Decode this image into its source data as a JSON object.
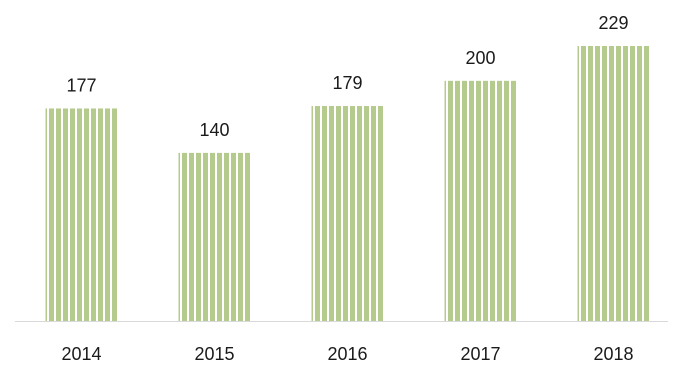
{
  "chart_data": {
    "type": "bar",
    "categories": [
      "2014",
      "2015",
      "2016",
      "2017",
      "2018"
    ],
    "values": [
      177,
      140,
      179,
      200,
      229
    ],
    "title": "",
    "xlabel": "",
    "ylabel": "",
    "ylim": [
      0,
      229
    ],
    "grid": false,
    "legend": "none",
    "bar_color": "#b5ca8d",
    "bar_stripe_color": "#ffffff",
    "axis_color": "#d9d9d9"
  }
}
